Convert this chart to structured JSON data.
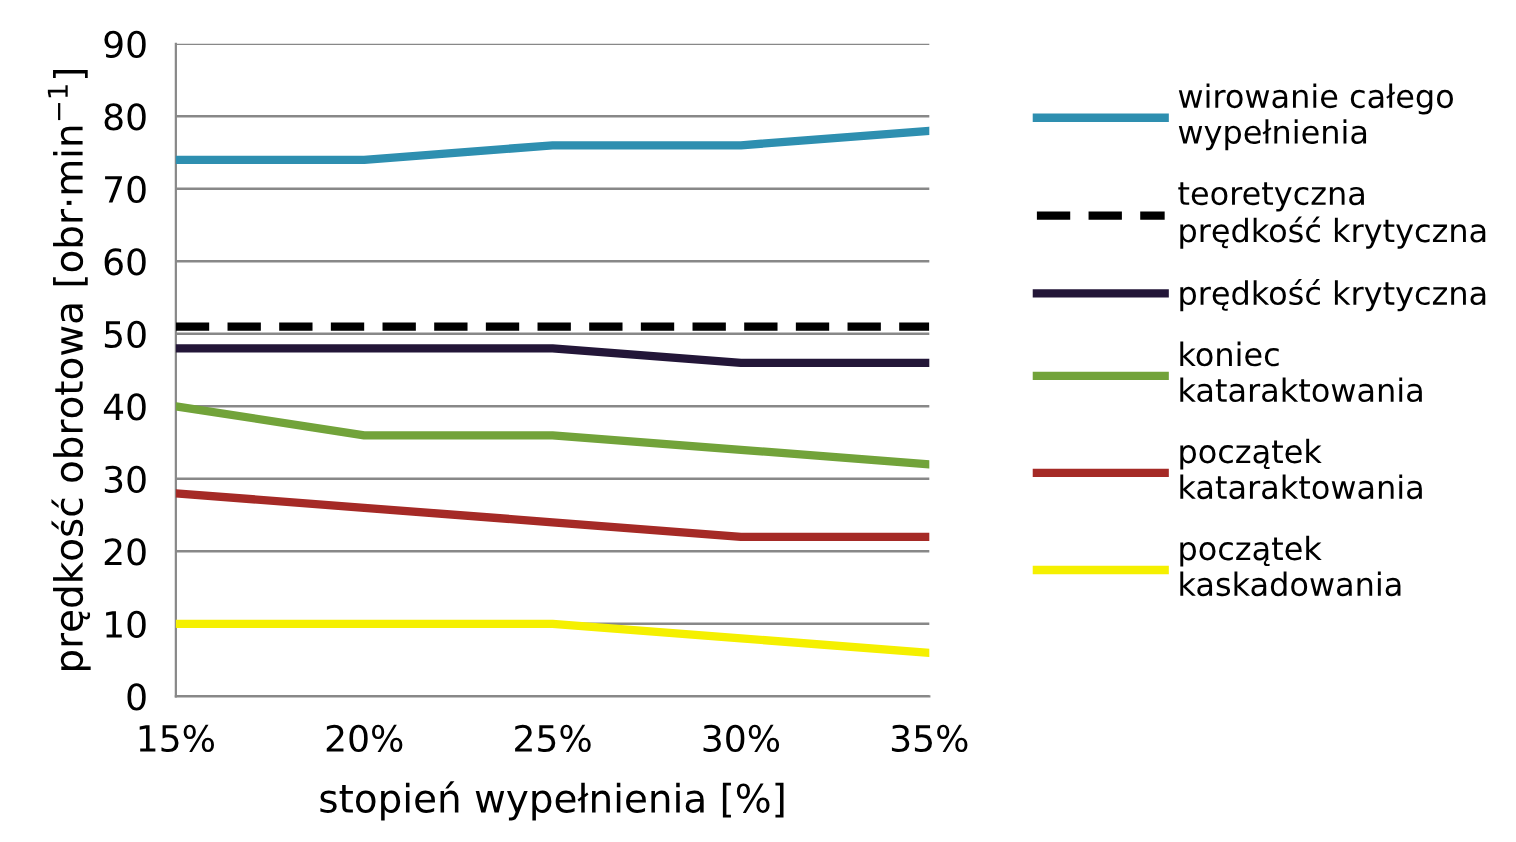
{
  "chart_data": {
    "type": "line",
    "xlabel": "stopień wypełnienia [%]",
    "ylabel": "prędkość obrotowa [obr·min$^{−1}$]",
    "x": [
      15,
      20,
      25,
      30,
      35
    ],
    "xlim": [
      15,
      35
    ],
    "xticks": [
      {
        "value": 15,
        "label": "15%"
      },
      {
        "value": 20,
        "label": "20%"
      },
      {
        "value": 25,
        "label": "25%"
      },
      {
        "value": 30,
        "label": "30%"
      },
      {
        "value": 35,
        "label": "35%"
      }
    ],
    "ylim": [
      0,
      90
    ],
    "yticks": [
      0,
      10,
      20,
      30,
      40,
      50,
      60,
      70,
      80,
      90
    ],
    "grid": "y",
    "legend": "right",
    "marker": "none",
    "series": [
      {
        "name": "wirowanie całego\nwypełnienia",
        "color": "#2e8fb0",
        "values": [
          74,
          74,
          76,
          76,
          78
        ]
      },
      {
        "name": "teoretyczna\nprędkość krytyczna",
        "color": "#000000",
        "values": [
          51,
          51,
          51,
          51,
          51
        ],
        "line_style": "dashed"
      },
      {
        "name": "prędkość krytyczna",
        "color": "#231638",
        "values": [
          48,
          48,
          48,
          46,
          46
        ]
      },
      {
        "name": "koniec\nkataraktowania",
        "color": "#72a33a",
        "values": [
          40,
          36,
          36,
          34,
          32
        ]
      },
      {
        "name": "początek\nkataraktowania",
        "color": "#a52a26",
        "values": [
          28,
          26,
          24,
          22,
          22
        ]
      },
      {
        "name": "początek\nkaskadowania",
        "color": "#f5f000",
        "values": [
          10,
          10,
          10,
          8,
          6
        ]
      }
    ]
  }
}
